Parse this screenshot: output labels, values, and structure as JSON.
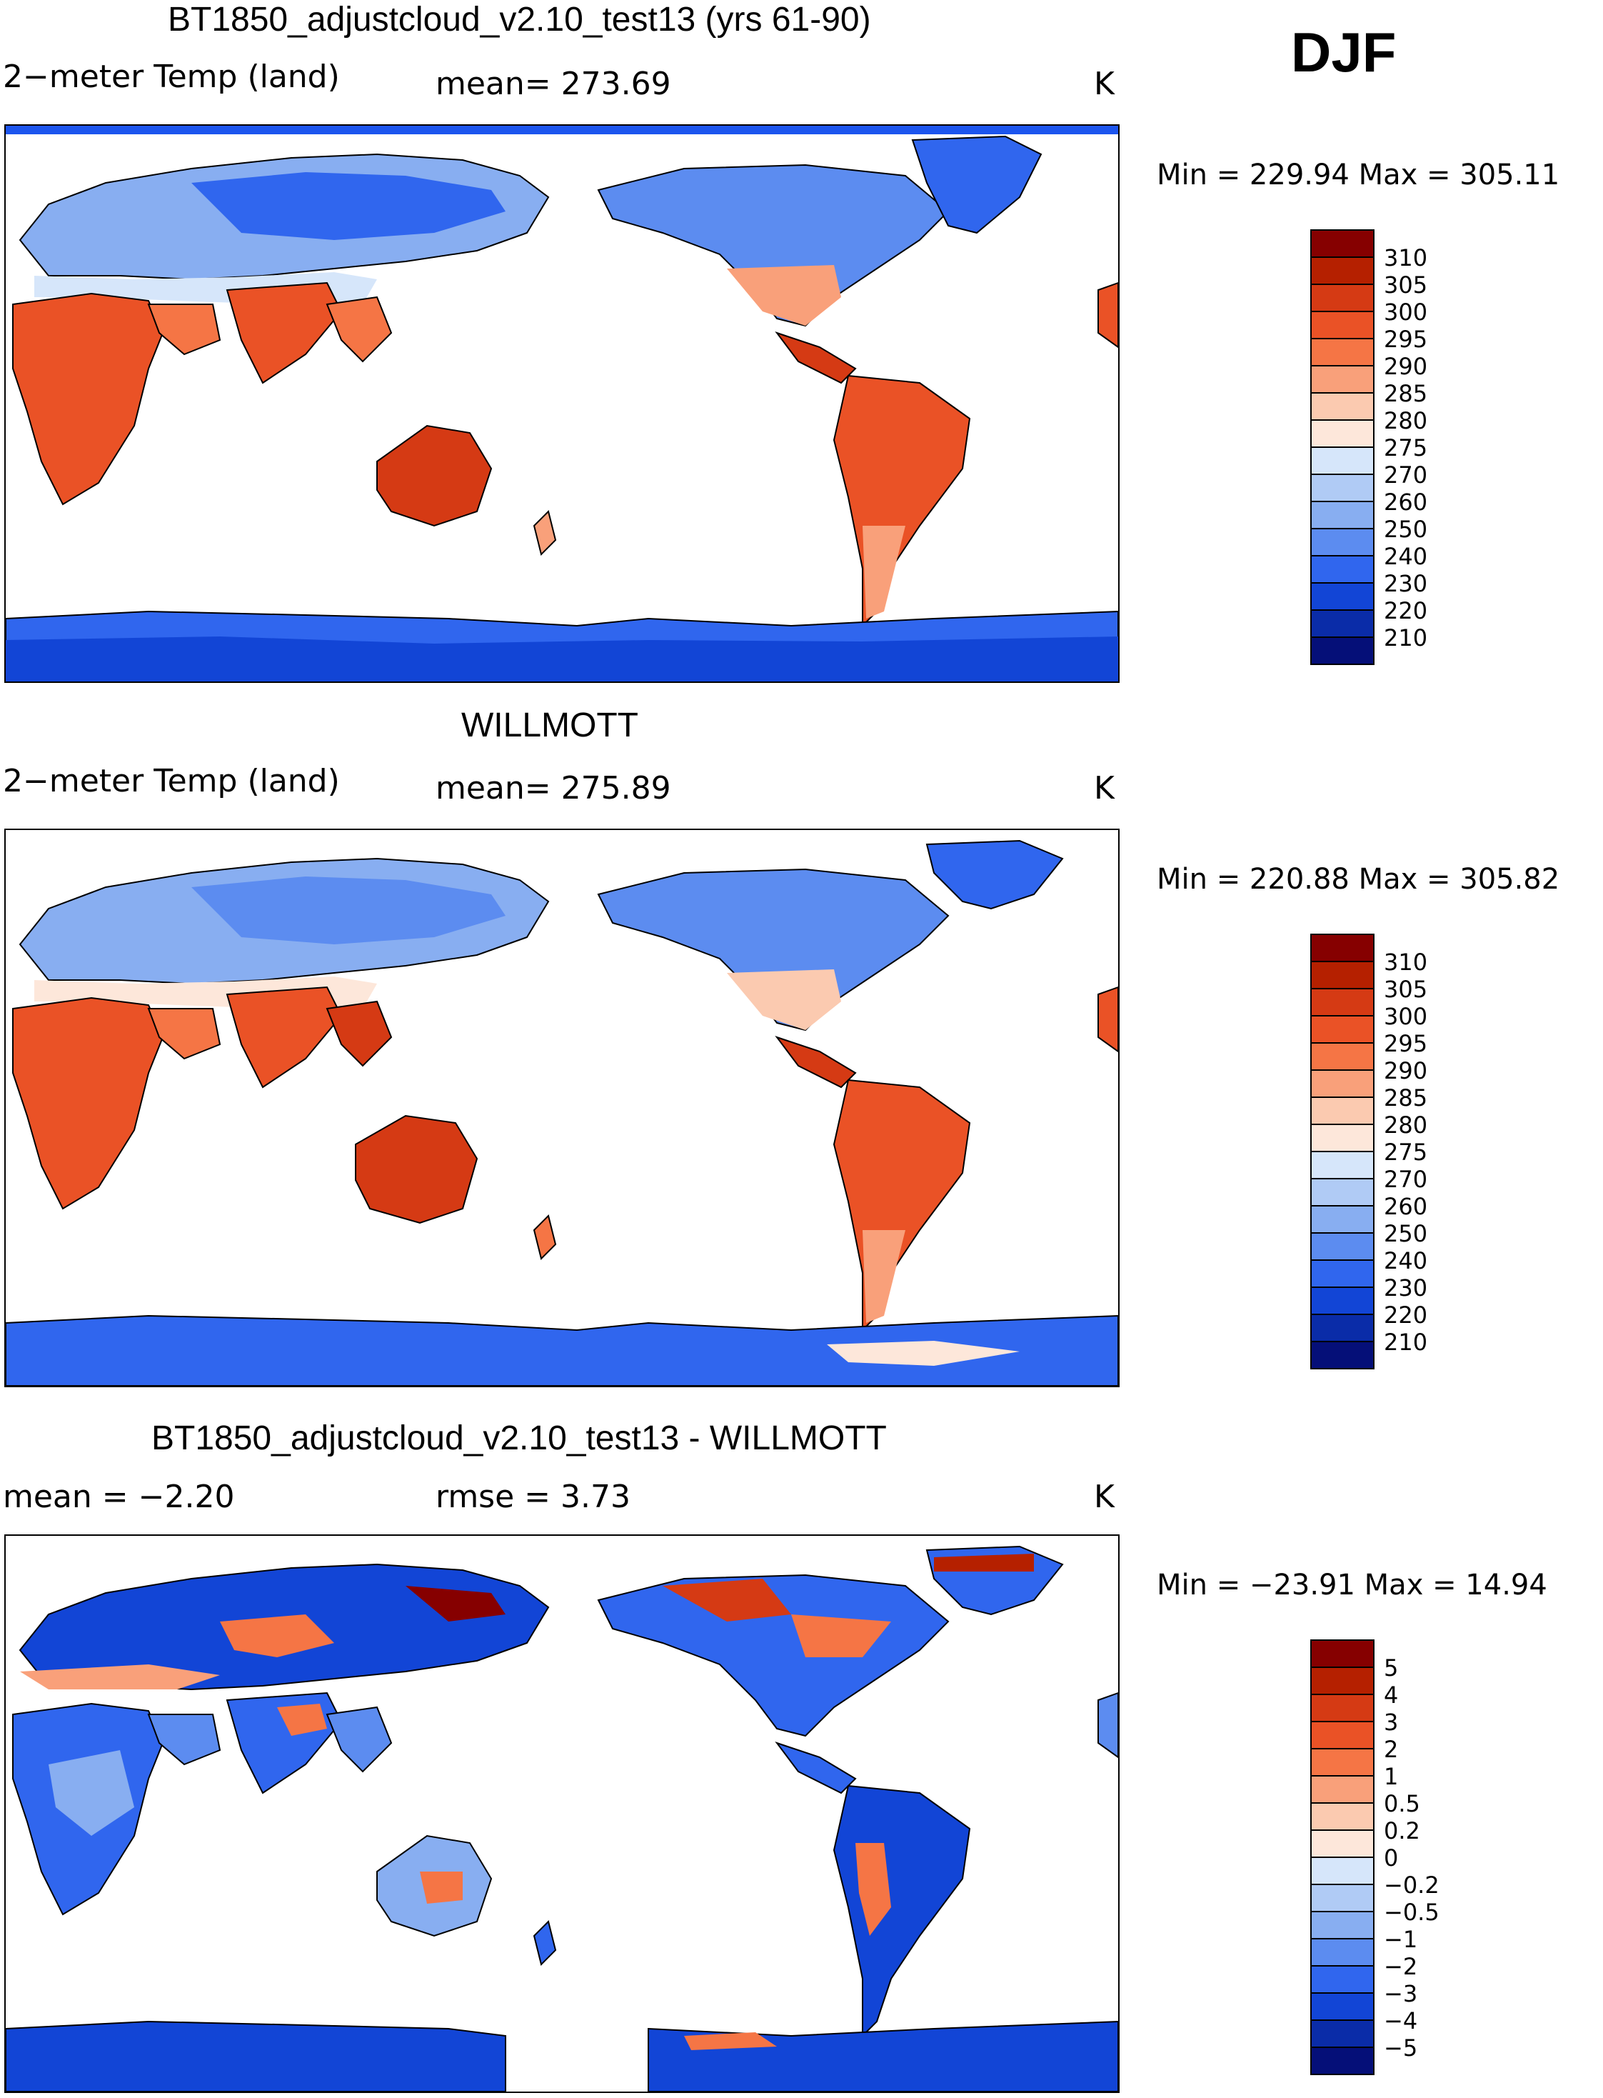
{
  "season": "DJF",
  "panels": [
    {
      "title": "BT1850_adjustcloud_v2.10_test13 (yrs 61-90)",
      "left_label": "2−meter Temp (land)",
      "center_label": "mean= 273.69",
      "units": "K",
      "min_max": "Min  =  229.94  Max  =  305.11",
      "colorbar_labels": [
        "310",
        "305",
        "300",
        "295",
        "290",
        "285",
        "280",
        "275",
        "270",
        "260",
        "250",
        "240",
        "230",
        "220",
        "210"
      ],
      "colorbar_colors": [
        "#860000",
        "#b52000",
        "#d53a14",
        "#ea5226",
        "#f57545",
        "#f9a07a",
        "#fbcab0",
        "#fde7da",
        "#d6e6fa",
        "#b0cbf5",
        "#88aef1",
        "#5c8cf0",
        "#3066ee",
        "#1245d6",
        "#0a2ca8",
        "#050f78"
      ]
    },
    {
      "title": "WILLMOTT",
      "left_label": "2−meter Temp (land)",
      "center_label": "mean= 275.89",
      "units": "K",
      "min_max": "Min  =  220.88  Max  =  305.82",
      "colorbar_labels": [
        "310",
        "305",
        "300",
        "295",
        "290",
        "285",
        "280",
        "275",
        "270",
        "260",
        "250",
        "240",
        "230",
        "220",
        "210"
      ],
      "colorbar_colors": [
        "#860000",
        "#b52000",
        "#d53a14",
        "#ea5226",
        "#f57545",
        "#f9a07a",
        "#fbcab0",
        "#fde7da",
        "#d6e6fa",
        "#b0cbf5",
        "#88aef1",
        "#5c8cf0",
        "#3066ee",
        "#1245d6",
        "#0a2ca8",
        "#050f78"
      ]
    },
    {
      "title": "BT1850_adjustcloud_v2.10_test13 - WILLMOTT",
      "left_label": "mean =   −2.20",
      "center_label": "rmse =     3.73",
      "units": "K",
      "min_max": "Min  =  −23.91  Max  =    14.94",
      "colorbar_labels": [
        "5",
        "4",
        "3",
        "2",
        "1",
        "0.5",
        "0.2",
        "0",
        "−0.2",
        "−0.5",
        "−1",
        "−2",
        "−3",
        "−4",
        "−5"
      ],
      "colorbar_colors": [
        "#860000",
        "#b52000",
        "#d53a14",
        "#ea5226",
        "#f57545",
        "#f9a07a",
        "#fbcab0",
        "#fde7da",
        "#d6e6fa",
        "#b0cbf5",
        "#88aef1",
        "#5c8cf0",
        "#3066ee",
        "#1245d6",
        "#0a2ca8",
        "#050f78"
      ]
    }
  ]
}
